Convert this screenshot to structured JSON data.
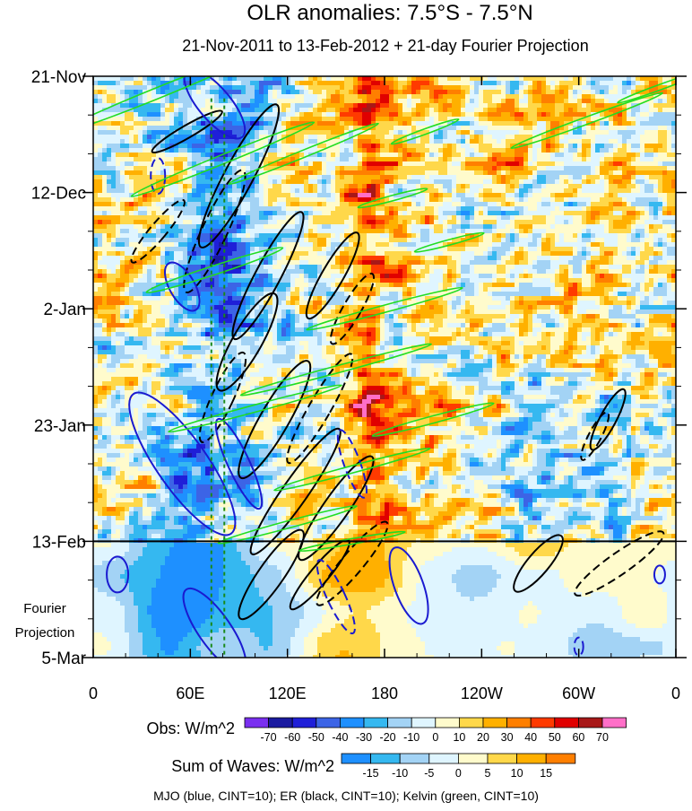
{
  "chart_data": {
    "type": "heatmap",
    "title": "OLR anomalies: 7.5°S - 7.5°N",
    "subtitle": "21-Nov-2011 to 13-Feb-2012 + 21-day Fourier Projection",
    "x_ticks": [
      {
        "lon": 0,
        "label": "0"
      },
      {
        "lon": 60,
        "label": "60E"
      },
      {
        "lon": 120,
        "label": "120E"
      },
      {
        "lon": 180,
        "label": "180"
      },
      {
        "lon": 240,
        "label": "120W"
      },
      {
        "lon": 300,
        "label": "60W"
      },
      {
        "lon": 360,
        "label": "0"
      }
    ],
    "xlim": [
      0,
      360
    ],
    "y_ticks": [
      {
        "day": 0,
        "label": "21-Nov"
      },
      {
        "day": 21,
        "label": "12-Dec"
      },
      {
        "day": 42,
        "label": "2-Jan"
      },
      {
        "day": 63,
        "label": "23-Jan"
      },
      {
        "day": 84,
        "label": "13-Feb"
      },
      {
        "day": 105,
        "label": "5-Mar"
      }
    ],
    "ylim_days": [
      0,
      105
    ],
    "projection_start_day": 84,
    "projection_label_1": "Fourier",
    "projection_label_2": "Projection",
    "obs_colorbar": {
      "title": "Obs: W/m^2",
      "labels": [
        "-70",
        "-60",
        "-50",
        "-40",
        "-30",
        "-20",
        "-10",
        "0",
        "10",
        "20",
        "30",
        "40",
        "50",
        "60",
        "70"
      ],
      "colors": [
        "#7a2ff0",
        "#1a1aa0",
        "#1f1fd8",
        "#3c64e6",
        "#1e90ff",
        "#35b8f0",
        "#a3d3f5",
        "#dff5ff",
        "#fffbcc",
        "#ffd84a",
        "#ffb000",
        "#ff7f00",
        "#ff3a00",
        "#e00000",
        "#a81818",
        "#ff6fc8"
      ]
    },
    "waves_colorbar": {
      "title": "Sum of Waves: W/m^2",
      "labels": [
        "-15",
        "-10",
        "-5",
        "0",
        "5",
        "10",
        "15"
      ],
      "colors": [
        "#1e90ff",
        "#35b8f0",
        "#a3d3f5",
        "#dff5ff",
        "#fffbcc",
        "#ffd84a",
        "#ffb000",
        "#ff7f00"
      ]
    },
    "footnote": "MJO (blue, CINT=10); ER (black, CINT=10); Kelvin (green, CINT=10)",
    "contour_colors": {
      "mjo": "#1a1ad0",
      "er": "#000000",
      "kelvin": "#22dd22"
    },
    "mjo_reference_lons": [
      73,
      81
    ],
    "grid": false
  }
}
